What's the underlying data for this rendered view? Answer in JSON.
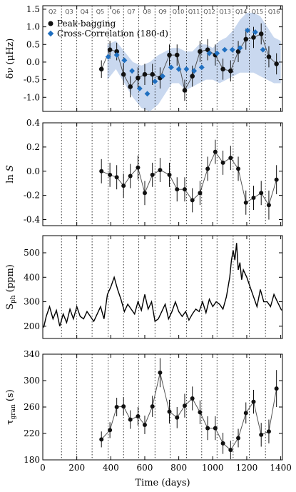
{
  "chart_data": {
    "type": "multi-panel",
    "shared_x": {
      "label": "Time (days)",
      "lim": [
        0,
        1410
      ],
      "ticks": [
        0,
        200,
        400,
        600,
        800,
        1000,
        1200,
        1400
      ]
    },
    "quarters": {
      "labels": [
        "Q2",
        "Q3",
        "Q4",
        "Q5",
        "Q6",
        "Q7",
        "Q8",
        "Q9",
        "Q10",
        "Q11",
        "Q12",
        "Q13",
        "Q14",
        "Q15",
        "Q16"
      ],
      "boundaries": [
        110,
        200,
        290,
        385,
        475,
        565,
        660,
        750,
        845,
        935,
        1025,
        1120,
        1215,
        1310
      ]
    },
    "panels": [
      {
        "id": "dnu",
        "type": "scatter",
        "ylabel": "δν (μHz)",
        "ylim": [
          -1.4,
          1.6
        ],
        "yticks": [
          -1.0,
          -0.5,
          0.0,
          0.5,
          1.0,
          1.5
        ],
        "legend_position": "top-left",
        "band": {
          "color": "#c9d8ef",
          "x": [
            380,
            430,
            480,
            530,
            580,
            630,
            680,
            720,
            760,
            800,
            840,
            880,
            920,
            960,
            1000,
            1040,
            1080,
            1120,
            1160,
            1200,
            1240,
            1280,
            1320,
            1360,
            1400
          ],
          "lower": [
            -0.5,
            -0.2,
            -0.6,
            -1.0,
            -1.3,
            -1.4,
            -1.2,
            -0.9,
            -0.6,
            -0.6,
            -0.8,
            -0.7,
            -0.6,
            -0.5,
            -0.5,
            -0.6,
            -0.5,
            -0.4,
            -0.3,
            -0.3,
            -0.3,
            -0.4,
            -0.5,
            -0.6,
            -0.6
          ],
          "upper": [
            0.5,
            0.6,
            0.3,
            0.0,
            -0.1,
            0.0,
            0.2,
            0.3,
            0.4,
            0.4,
            0.3,
            0.3,
            0.5,
            0.5,
            0.4,
            0.6,
            0.7,
            0.9,
            1.2,
            1.4,
            1.4,
            1.3,
            1.0,
            0.7,
            0.6
          ]
        },
        "series": [
          {
            "name": "Peak-bagging",
            "color": "#111111",
            "x": [
              345,
              395,
              435,
              475,
              515,
              560,
              600,
              645,
              690,
              745,
              790,
              835,
              880,
              925,
              970,
              1015,
              1060,
              1105,
              1150,
              1195,
              1240,
              1285,
              1330,
              1375
            ],
            "y": [
              -0.2,
              0.35,
              0.3,
              -0.35,
              -0.7,
              -0.45,
              -0.35,
              -0.35,
              -0.45,
              0.2,
              0.2,
              -0.8,
              -0.4,
              0.3,
              0.35,
              0.2,
              -0.2,
              -0.25,
              0.3,
              0.65,
              0.7,
              0.8,
              0.15,
              -0.05
            ],
            "err": [
              0.25,
              0.25,
              0.25,
              0.3,
              0.3,
              0.3,
              0.3,
              0.3,
              0.3,
              0.3,
              0.3,
              0.3,
              0.3,
              0.3,
              0.3,
              0.3,
              0.3,
              0.3,
              0.3,
              0.3,
              0.3,
              0.3,
              0.3,
              0.3
            ]
          },
          {
            "name": "Cross-Correlation (180-d)",
            "color": "#1f6fc0",
            "x": [
              385,
              435,
              480,
              525,
              570,
              615,
              660,
              705,
              755,
              800,
              845,
              890,
              935,
              980,
              1025,
              1070,
              1115,
              1160,
              1205,
              1250,
              1295
            ],
            "y": [
              0.15,
              0.2,
              0.05,
              -0.25,
              -0.75,
              -0.9,
              -0.55,
              -0.4,
              -0.15,
              -0.2,
              -0.2,
              -0.25,
              -0.15,
              0.25,
              0.25,
              0.35,
              0.35,
              0.4,
              0.9,
              0.85,
              0.35
            ]
          }
        ]
      },
      {
        "id": "lnS",
        "type": "line",
        "ylabel": "ln S",
        "ylim": [
          -0.45,
          0.4
        ],
        "yticks": [
          -0.4,
          -0.2,
          0.0,
          0.2,
          0.4
        ],
        "series": [
          {
            "color": "#111111",
            "x": [
              345,
              395,
              435,
              475,
              515,
              560,
              600,
              645,
              690,
              745,
              790,
              835,
              880,
              925,
              970,
              1015,
              1060,
              1105,
              1150,
              1195,
              1240,
              1285,
              1330,
              1375
            ],
            "y": [
              0.0,
              -0.03,
              -0.05,
              -0.12,
              -0.04,
              0.03,
              -0.18,
              -0.03,
              0.01,
              -0.03,
              -0.15,
              -0.15,
              -0.24,
              -0.18,
              0.02,
              0.16,
              0.07,
              0.11,
              0.02,
              -0.26,
              -0.22,
              -0.18,
              -0.28,
              -0.07
            ],
            "err": [
              0.1,
              0.1,
              0.1,
              0.1,
              0.1,
              0.1,
              0.1,
              0.1,
              0.1,
              0.1,
              0.1,
              0.1,
              0.1,
              0.1,
              0.1,
              0.1,
              0.1,
              0.1,
              0.1,
              0.1,
              0.1,
              0.1,
              0.12,
              0.12
            ]
          }
        ]
      },
      {
        "id": "sph",
        "type": "line",
        "ylabel": "Sph (ppm)",
        "ylim": [
          150,
          570
        ],
        "yticks": [
          200,
          300,
          400,
          500
        ],
        "series": [
          {
            "color": "#000000",
            "x": [
              5,
              20,
              40,
              60,
              80,
              100,
              120,
              140,
              160,
              180,
              200,
              220,
              240,
              260,
              280,
              300,
              320,
              340,
              360,
              380,
              400,
              420,
              440,
              460,
              480,
              500,
              520,
              540,
              560,
              580,
              600,
              620,
              640,
              660,
              680,
              700,
              720,
              740,
              760,
              780,
              800,
              820,
              840,
              860,
              880,
              900,
              920,
              940,
              960,
              980,
              1000,
              1020,
              1040,
              1060,
              1080,
              1100,
              1110,
              1120,
              1130,
              1140,
              1150,
              1160,
              1170,
              1180,
              1200,
              1220,
              1240,
              1260,
              1280,
              1300,
              1320,
              1340,
              1360,
              1380,
              1405
            ],
            "y": [
              195,
              240,
              280,
              230,
              265,
              200,
              250,
              215,
              270,
              230,
              280,
              240,
              230,
              260,
              240,
              220,
              250,
              280,
              230,
              330,
              360,
              400,
              350,
              310,
              260,
              290,
              270,
              250,
              300,
              265,
              330,
              270,
              300,
              220,
              230,
              260,
              290,
              230,
              260,
              300,
              260,
              240,
              260,
              225,
              250,
              270,
              260,
              300,
              255,
              310,
              280,
              300,
              290,
              270,
              320,
              400,
              470,
              510,
              470,
              540,
              430,
              460,
              390,
              430,
              400,
              360,
              320,
              280,
              350,
              300,
              300,
              280,
              330,
              300,
              265
            ]
          }
        ]
      },
      {
        "id": "tgran",
        "type": "line",
        "ylabel": "τgran (s)",
        "ylim": [
          180,
          340
        ],
        "yticks": [
          180,
          220,
          260,
          300,
          340
        ],
        "series": [
          {
            "color": "#111111",
            "x": [
              345,
              395,
              435,
              475,
              515,
              560,
              600,
              645,
              690,
              745,
              790,
              835,
              880,
              925,
              970,
              1015,
              1060,
              1105,
              1150,
              1195,
              1240,
              1285,
              1330,
              1375
            ],
            "y": [
              211,
              225,
              260,
              261,
              241,
              246,
              233,
              261,
              312,
              253,
              244,
              262,
              273,
              252,
              228,
              228,
              205,
              195,
              213,
              251,
              268,
              218,
              223,
              288
            ],
            "err": [
              12,
              12,
              14,
              14,
              14,
              14,
              14,
              16,
              22,
              18,
              16,
              18,
              18,
              18,
              18,
              18,
              16,
              14,
              14,
              16,
              18,
              18,
              18,
              28
            ]
          }
        ]
      }
    ]
  }
}
